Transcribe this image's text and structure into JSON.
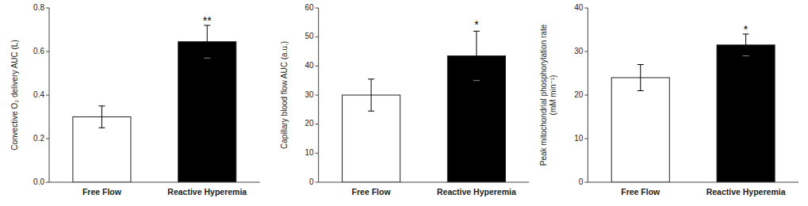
{
  "chart_data": [
    {
      "type": "bar",
      "y_label": "Convective O₂ delivery AUC (L)",
      "categories": [
        "Free Flow",
        "Reactive Hyperemia"
      ],
      "values": [
        0.3,
        0.645
      ],
      "errors": [
        0.05,
        0.075
      ],
      "colors": [
        "white",
        "black"
      ],
      "ylim": [
        0,
        0.8
      ],
      "yticks": [
        {
          "value": 0.0,
          "label": "0.0"
        },
        0.2,
        0.4,
        0.6,
        0.8
      ],
      "annotations": [
        {
          "text": "**",
          "x": "Reactive Hyperemia",
          "y": 0.725
        }
      ],
      "grid": false
    },
    {
      "type": "bar",
      "y_label": "Capillary blood flow AUC (a.u.)",
      "categories": [
        "Free Flow",
        "Reactive Hyperemia"
      ],
      "values": [
        30.0,
        43.5
      ],
      "errors": [
        5.5,
        8.5
      ],
      "colors": [
        "white",
        "black"
      ],
      "ylim": [
        0,
        60
      ],
      "yticks": [
        0,
        10,
        20,
        30,
        40,
        50,
        60
      ],
      "annotations": [
        {
          "text": "*",
          "x": "Reactive Hyperemia",
          "y": 53.0
        }
      ],
      "grid": false
    },
    {
      "type": "bar",
      "y_label": "Peak mitochondrial phosphorylation rate\n(mM min⁻¹)",
      "categories": [
        "Free Flow",
        "Reactive Hyperemia"
      ],
      "values": [
        24.0,
        31.5
      ],
      "errors": [
        3.0,
        2.5
      ],
      "colors": [
        "white",
        "black"
      ],
      "ylim": [
        0,
        40
      ],
      "yticks": [
        0,
        10,
        20,
        30,
        40
      ],
      "annotations": [
        {
          "text": "*",
          "x": "Reactive Hyperemia",
          "y": 34.2
        }
      ],
      "grid": false
    }
  ]
}
